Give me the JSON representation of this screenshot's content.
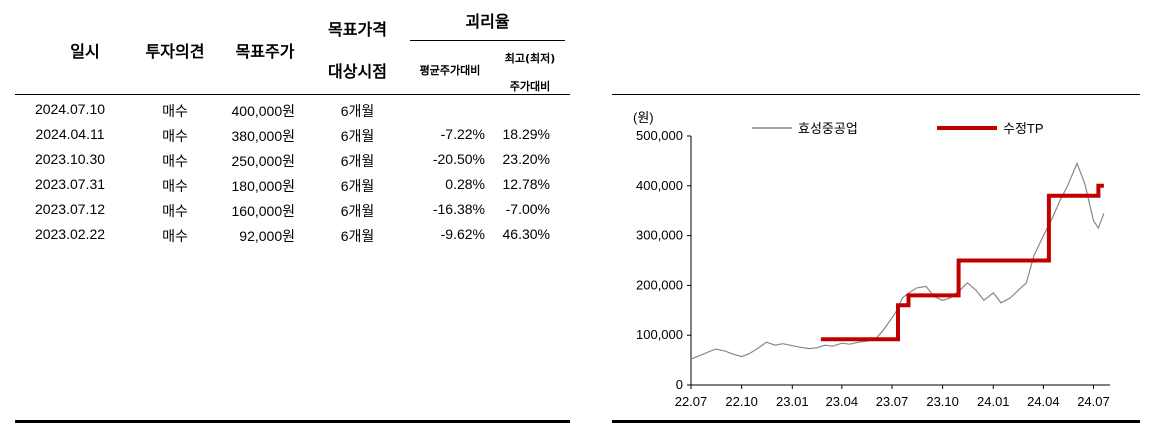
{
  "table": {
    "headers": {
      "date": "일시",
      "opinion": "투자의견",
      "target": "목표주가",
      "target_period_l1": "목표가격",
      "target_period_l2": "대상시점",
      "gap": "괴리율",
      "gap_avg": "평균주가대비",
      "gap_ext_l1": "최고(최저)",
      "gap_ext_l2": "주가대비"
    },
    "rows": [
      {
        "date": "2024.07.10",
        "opinion": "매수",
        "target": "400,000원",
        "period": "6개월",
        "avg": "",
        "ext": ""
      },
      {
        "date": "2024.04.11",
        "opinion": "매수",
        "target": "380,000원",
        "period": "6개월",
        "avg": "-7.22%",
        "ext": "18.29%"
      },
      {
        "date": "2023.10.30",
        "opinion": "매수",
        "target": "250,000원",
        "period": "6개월",
        "avg": "-20.50%",
        "ext": "23.20%"
      },
      {
        "date": "2023.07.31",
        "opinion": "매수",
        "target": "180,000원",
        "period": "6개월",
        "avg": "0.28%",
        "ext": "12.78%"
      },
      {
        "date": "2023.07.12",
        "opinion": "매수",
        "target": "160,000원",
        "period": "6개월",
        "avg": "-16.38%",
        "ext": "-7.00%"
      },
      {
        "date": "2023.02.22",
        "opinion": "매수",
        "target": "92,000원",
        "period": "6개월",
        "avg": "-9.62%",
        "ext": "46.30%"
      }
    ]
  },
  "chart_data": {
    "type": "line",
    "unit_label": "(원)",
    "ylim": [
      0,
      500000
    ],
    "y_ticks": [
      "0",
      "100,000",
      "200,000",
      "300,000",
      "400,000",
      "500,000"
    ],
    "y_tick_values": [
      0,
      100000,
      200000,
      300000,
      400000,
      500000
    ],
    "xlim": [
      "2022-07-01",
      "2024-07-31"
    ],
    "x_tick_labels": [
      "22.07",
      "22.10",
      "23.01",
      "23.04",
      "23.07",
      "23.10",
      "24.01",
      "24.04",
      "24.07"
    ],
    "x_tick_dates": [
      "2022-07-01",
      "2022-10-01",
      "2023-01-01",
      "2023-04-01",
      "2023-07-01",
      "2023-10-01",
      "2024-01-01",
      "2024-04-01",
      "2024-07-01"
    ],
    "legend_placement": "top",
    "series": [
      {
        "name": "효성중공업",
        "color": "#888888",
        "points": [
          [
            "2022-07-01",
            52000
          ],
          [
            "2022-07-15",
            58000
          ],
          [
            "2022-08-01",
            66000
          ],
          [
            "2022-08-15",
            72000
          ],
          [
            "2022-09-01",
            68000
          ],
          [
            "2022-09-15",
            62000
          ],
          [
            "2022-10-01",
            57000
          ],
          [
            "2022-10-15",
            63000
          ],
          [
            "2022-11-01",
            75000
          ],
          [
            "2022-11-15",
            86000
          ],
          [
            "2022-12-01",
            80000
          ],
          [
            "2022-12-15",
            83000
          ],
          [
            "2023-01-01",
            79000
          ],
          [
            "2023-01-15",
            76000
          ],
          [
            "2023-02-01",
            73000
          ],
          [
            "2023-02-15",
            75000
          ],
          [
            "2023-03-01",
            80000
          ],
          [
            "2023-03-15",
            78000
          ],
          [
            "2023-04-01",
            84000
          ],
          [
            "2023-04-15",
            82000
          ],
          [
            "2023-05-01",
            86000
          ],
          [
            "2023-05-15",
            88000
          ],
          [
            "2023-06-01",
            92000
          ],
          [
            "2023-06-15",
            110000
          ],
          [
            "2023-07-01",
            135000
          ],
          [
            "2023-07-10",
            150000
          ],
          [
            "2023-07-20",
            175000
          ],
          [
            "2023-08-01",
            185000
          ],
          [
            "2023-08-15",
            195000
          ],
          [
            "2023-09-01",
            198000
          ],
          [
            "2023-09-15",
            178000
          ],
          [
            "2023-10-01",
            170000
          ],
          [
            "2023-10-15",
            175000
          ],
          [
            "2023-11-01",
            190000
          ],
          [
            "2023-11-15",
            205000
          ],
          [
            "2023-12-01",
            190000
          ],
          [
            "2023-12-15",
            170000
          ],
          [
            "2024-01-01",
            185000
          ],
          [
            "2024-01-15",
            165000
          ],
          [
            "2024-02-01",
            175000
          ],
          [
            "2024-02-15",
            190000
          ],
          [
            "2024-03-01",
            205000
          ],
          [
            "2024-03-15",
            260000
          ],
          [
            "2024-04-01",
            300000
          ],
          [
            "2024-04-15",
            330000
          ],
          [
            "2024-05-01",
            370000
          ],
          [
            "2024-05-15",
            400000
          ],
          [
            "2024-06-01",
            445000
          ],
          [
            "2024-06-15",
            405000
          ],
          [
            "2024-07-01",
            330000
          ],
          [
            "2024-07-10",
            315000
          ],
          [
            "2024-07-20",
            345000
          ]
        ]
      },
      {
        "name": "수정TP",
        "color": "#c00000",
        "step": true,
        "points": [
          [
            "2023-02-22",
            92000
          ],
          [
            "2023-07-12",
            160000
          ],
          [
            "2023-07-31",
            180000
          ],
          [
            "2023-10-30",
            250000
          ],
          [
            "2024-04-11",
            380000
          ],
          [
            "2024-07-10",
            400000
          ],
          [
            "2024-07-20",
            400000
          ]
        ]
      }
    ]
  }
}
